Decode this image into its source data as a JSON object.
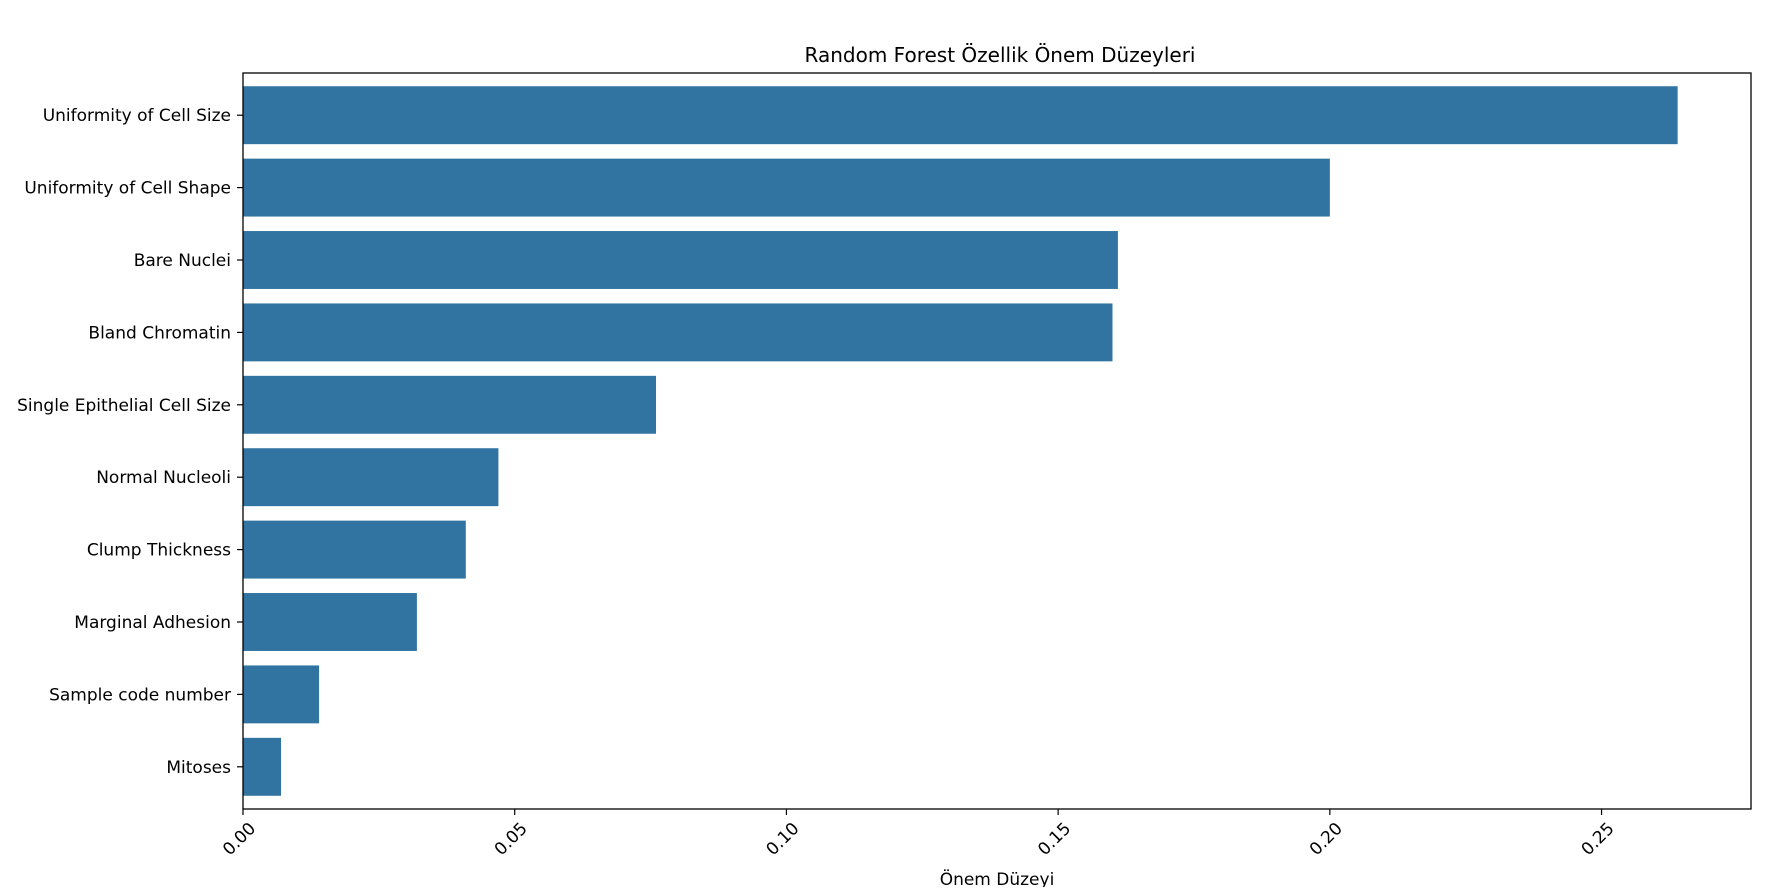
{
  "chart_data": {
    "type": "bar",
    "orientation": "horizontal",
    "title": "Random Forest Özellik Önem Düzeyleri",
    "xlabel": "Önem Düzeyi",
    "ylabel": "",
    "xlim": [
      0,
      0.2775
    ],
    "xticks": [
      0.0,
      0.05,
      0.1,
      0.15,
      0.2,
      0.25
    ],
    "xtick_labels": [
      "0.00",
      "0.05",
      "0.10",
      "0.15",
      "0.20",
      "0.25"
    ],
    "grid": false,
    "legend": "none",
    "bar_color": "#3274a1",
    "categories": [
      "Uniformity of Cell Size",
      "Uniformity of Cell Shape",
      "Bare Nuclei",
      "Bland Chromatin",
      "Single Epithelial Cell Size",
      "Normal Nucleoli",
      "Clump Thickness",
      "Marginal Adhesion",
      "Sample code number",
      "Mitoses"
    ],
    "values": [
      0.264,
      0.2,
      0.161,
      0.16,
      0.076,
      0.047,
      0.041,
      0.032,
      0.014,
      0.007
    ]
  }
}
